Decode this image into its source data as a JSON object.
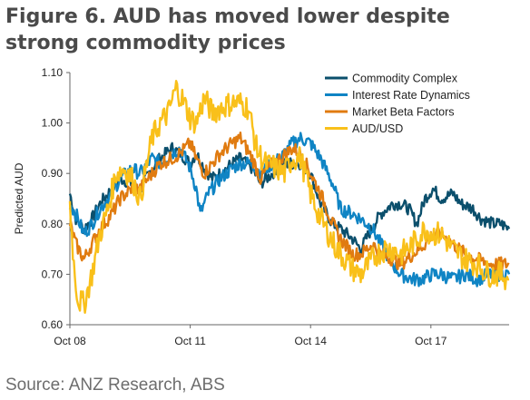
{
  "title": "Figure 6. AUD has moved lower despite strong commodity prices",
  "source": "Source: ANZ Research, ABS",
  "chart_data": {
    "type": "line",
    "ylabel": "Predicted AUD",
    "xlabel": "",
    "ylim": [
      0.6,
      1.1
    ],
    "yticks": [
      "0.60",
      "0.70",
      "0.80",
      "0.90",
      "1.00",
      "1.10"
    ],
    "xlim": [
      2008.75,
      2019.7
    ],
    "xticks": [
      {
        "label": "Oct 08",
        "x": 2008.75
      },
      {
        "label": "Oct 11",
        "x": 2011.75
      },
      {
        "label": "Oct 14",
        "x": 2014.75
      },
      {
        "label": "Oct 17",
        "x": 2017.75
      }
    ],
    "legend_position": "top-right",
    "series": [
      {
        "name": "Commodity Complex",
        "color": "#0b4f6c",
        "points": [
          [
            2008.75,
            0.86
          ],
          [
            2008.9,
            0.81
          ],
          [
            2009.1,
            0.79
          ],
          [
            2009.3,
            0.81
          ],
          [
            2009.5,
            0.84
          ],
          [
            2009.8,
            0.87
          ],
          [
            2010.0,
            0.89
          ],
          [
            2010.3,
            0.88
          ],
          [
            2010.5,
            0.87
          ],
          [
            2010.8,
            0.91
          ],
          [
            2011.0,
            0.93
          ],
          [
            2011.3,
            0.95
          ],
          [
            2011.5,
            0.94
          ],
          [
            2011.75,
            0.92
          ],
          [
            2011.9,
            0.94
          ],
          [
            2012.1,
            0.91
          ],
          [
            2012.3,
            0.89
          ],
          [
            2012.5,
            0.9
          ],
          [
            2012.8,
            0.92
          ],
          [
            2013.0,
            0.93
          ],
          [
            2013.3,
            0.91
          ],
          [
            2013.5,
            0.88
          ],
          [
            2013.8,
            0.9
          ],
          [
            2014.0,
            0.92
          ],
          [
            2014.3,
            0.92
          ],
          [
            2014.5,
            0.92
          ],
          [
            2014.75,
            0.9
          ],
          [
            2015.0,
            0.84
          ],
          [
            2015.3,
            0.8
          ],
          [
            2015.5,
            0.79
          ],
          [
            2015.8,
            0.77
          ],
          [
            2016.0,
            0.75
          ],
          [
            2016.2,
            0.78
          ],
          [
            2016.5,
            0.82
          ],
          [
            2016.8,
            0.84
          ],
          [
            2017.0,
            0.84
          ],
          [
            2017.2,
            0.83
          ],
          [
            2017.4,
            0.8
          ],
          [
            2017.6,
            0.85
          ],
          [
            2017.8,
            0.87
          ],
          [
            2018.0,
            0.85
          ],
          [
            2018.3,
            0.86
          ],
          [
            2018.5,
            0.84
          ],
          [
            2018.8,
            0.83
          ],
          [
            2019.0,
            0.81
          ],
          [
            2019.3,
            0.8
          ],
          [
            2019.5,
            0.8
          ],
          [
            2019.7,
            0.79
          ]
        ]
      },
      {
        "name": "Interest Rate Dynamics",
        "color": "#0f84c4",
        "points": [
          [
            2008.75,
            0.84
          ],
          [
            2008.9,
            0.82
          ],
          [
            2009.1,
            0.78
          ],
          [
            2009.3,
            0.8
          ],
          [
            2009.5,
            0.83
          ],
          [
            2009.8,
            0.86
          ],
          [
            2010.0,
            0.89
          ],
          [
            2010.3,
            0.91
          ],
          [
            2010.5,
            0.9
          ],
          [
            2010.8,
            0.93
          ],
          [
            2011.0,
            0.92
          ],
          [
            2011.3,
            0.94
          ],
          [
            2011.5,
            0.95
          ],
          [
            2011.75,
            0.91
          ],
          [
            2011.9,
            0.87
          ],
          [
            2012.0,
            0.82
          ],
          [
            2012.2,
            0.86
          ],
          [
            2012.5,
            0.89
          ],
          [
            2012.8,
            0.91
          ],
          [
            2013.0,
            0.92
          ],
          [
            2013.3,
            0.92
          ],
          [
            2013.5,
            0.9
          ],
          [
            2013.8,
            0.92
          ],
          [
            2014.0,
            0.93
          ],
          [
            2014.3,
            0.96
          ],
          [
            2014.5,
            0.97
          ],
          [
            2014.75,
            0.96
          ],
          [
            2015.0,
            0.93
          ],
          [
            2015.3,
            0.88
          ],
          [
            2015.5,
            0.83
          ],
          [
            2015.8,
            0.82
          ],
          [
            2016.0,
            0.81
          ],
          [
            2016.3,
            0.79
          ],
          [
            2016.5,
            0.76
          ],
          [
            2016.8,
            0.72
          ],
          [
            2017.0,
            0.7
          ],
          [
            2017.3,
            0.69
          ],
          [
            2017.5,
            0.69
          ],
          [
            2017.8,
            0.7
          ],
          [
            2018.0,
            0.7
          ],
          [
            2018.3,
            0.69
          ],
          [
            2018.6,
            0.7
          ],
          [
            2018.9,
            0.69
          ],
          [
            2019.2,
            0.7
          ],
          [
            2019.5,
            0.7
          ],
          [
            2019.7,
            0.7
          ]
        ]
      },
      {
        "name": "Market Beta Factors",
        "color": "#e07b10",
        "points": [
          [
            2008.75,
            0.8
          ],
          [
            2008.9,
            0.76
          ],
          [
            2009.1,
            0.73
          ],
          [
            2009.3,
            0.76
          ],
          [
            2009.5,
            0.79
          ],
          [
            2009.8,
            0.82
          ],
          [
            2010.0,
            0.85
          ],
          [
            2010.3,
            0.87
          ],
          [
            2010.5,
            0.87
          ],
          [
            2010.8,
            0.9
          ],
          [
            2011.0,
            0.92
          ],
          [
            2011.3,
            0.93
          ],
          [
            2011.5,
            0.94
          ],
          [
            2011.75,
            0.96
          ],
          [
            2011.9,
            0.93
          ],
          [
            2012.1,
            0.9
          ],
          [
            2012.3,
            0.92
          ],
          [
            2012.5,
            0.94
          ],
          [
            2012.8,
            0.96
          ],
          [
            2013.0,
            0.97
          ],
          [
            2013.3,
            0.93
          ],
          [
            2013.5,
            0.89
          ],
          [
            2013.8,
            0.92
          ],
          [
            2014.0,
            0.93
          ],
          [
            2014.3,
            0.95
          ],
          [
            2014.5,
            0.94
          ],
          [
            2014.75,
            0.9
          ],
          [
            2015.0,
            0.86
          ],
          [
            2015.3,
            0.8
          ],
          [
            2015.5,
            0.77
          ],
          [
            2015.8,
            0.74
          ],
          [
            2016.0,
            0.74
          ],
          [
            2016.3,
            0.76
          ],
          [
            2016.5,
            0.74
          ],
          [
            2016.8,
            0.73
          ],
          [
            2017.0,
            0.72
          ],
          [
            2017.3,
            0.74
          ],
          [
            2017.6,
            0.76
          ],
          [
            2017.8,
            0.78
          ],
          [
            2018.0,
            0.78
          ],
          [
            2018.3,
            0.76
          ],
          [
            2018.6,
            0.74
          ],
          [
            2018.9,
            0.73
          ],
          [
            2019.2,
            0.72
          ],
          [
            2019.5,
            0.72
          ],
          [
            2019.7,
            0.72
          ]
        ]
      },
      {
        "name": "AUD/USD",
        "color": "#f9c01a",
        "points": [
          [
            2008.75,
            0.84
          ],
          [
            2008.85,
            0.72
          ],
          [
            2008.95,
            0.65
          ],
          [
            2009.1,
            0.64
          ],
          [
            2009.3,
            0.7
          ],
          [
            2009.5,
            0.78
          ],
          [
            2009.7,
            0.83
          ],
          [
            2009.9,
            0.9
          ],
          [
            2010.1,
            0.91
          ],
          [
            2010.3,
            0.89
          ],
          [
            2010.5,
            0.85
          ],
          [
            2010.8,
            0.97
          ],
          [
            2011.0,
            1.0
          ],
          [
            2011.2,
            1.02
          ],
          [
            2011.4,
            1.07
          ],
          [
            2011.6,
            1.04
          ],
          [
            2011.75,
            1.01
          ],
          [
            2011.9,
            1.0
          ],
          [
            2012.1,
            1.05
          ],
          [
            2012.3,
            1.02
          ],
          [
            2012.5,
            1.03
          ],
          [
            2012.8,
            1.04
          ],
          [
            2013.0,
            1.04
          ],
          [
            2013.2,
            1.03
          ],
          [
            2013.4,
            0.95
          ],
          [
            2013.6,
            0.92
          ],
          [
            2013.9,
            0.91
          ],
          [
            2014.1,
            0.9
          ],
          [
            2014.3,
            0.93
          ],
          [
            2014.5,
            0.93
          ],
          [
            2014.75,
            0.86
          ],
          [
            2015.0,
            0.81
          ],
          [
            2015.2,
            0.78
          ],
          [
            2015.4,
            0.75
          ],
          [
            2015.6,
            0.73
          ],
          [
            2015.8,
            0.71
          ],
          [
            2016.0,
            0.7
          ],
          [
            2016.2,
            0.72
          ],
          [
            2016.4,
            0.74
          ],
          [
            2016.6,
            0.75
          ],
          [
            2016.8,
            0.75
          ],
          [
            2017.0,
            0.74
          ],
          [
            2017.3,
            0.76
          ],
          [
            2017.6,
            0.79
          ],
          [
            2017.8,
            0.78
          ],
          [
            2018.0,
            0.78
          ],
          [
            2018.3,
            0.75
          ],
          [
            2018.6,
            0.73
          ],
          [
            2018.9,
            0.72
          ],
          [
            2019.2,
            0.7
          ],
          [
            2019.5,
            0.7
          ],
          [
            2019.7,
            0.69
          ]
        ]
      }
    ]
  }
}
